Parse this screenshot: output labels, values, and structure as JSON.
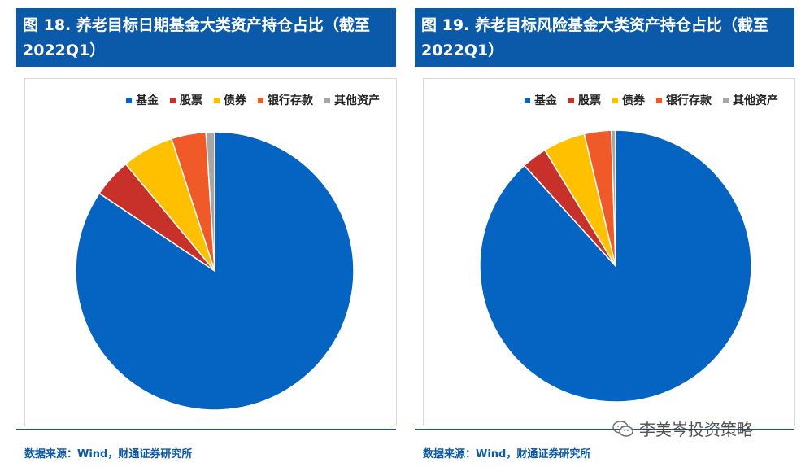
{
  "panels": [
    {
      "title": "图 18. 养老目标日期基金大类资产持仓占比（截至 2022Q1）",
      "source": "数据来源：Wind，财通证券研究所"
    },
    {
      "title": "图 19. 养老目标风险基金大类资产持仓占比（截至 2022Q1）",
      "source": "数据来源：Wind，财通证券研究所"
    }
  ],
  "watermark": "李美岑投资策略",
  "colors": {
    "title_bg": "#0b5aa9",
    "基金": "#0563c1",
    "股票": "#c8302a",
    "债券": "#ffc000",
    "银行存款": "#f05a28",
    "其他资产": "#a6a6a6"
  },
  "chart_data": [
    {
      "type": "pie",
      "legend_position": "top-right",
      "labels": [
        "基金",
        "股票",
        "债券",
        "银行存款",
        "其他资产"
      ],
      "values": [
        84.0,
        4.5,
        6.0,
        4.0,
        1.0
      ]
    },
    {
      "type": "pie",
      "legend_position": "top-right",
      "labels": [
        "基金",
        "股票",
        "债券",
        "银行存款",
        "其他资产"
      ],
      "values": [
        88.0,
        3.0,
        5.0,
        3.2,
        0.5
      ]
    }
  ]
}
